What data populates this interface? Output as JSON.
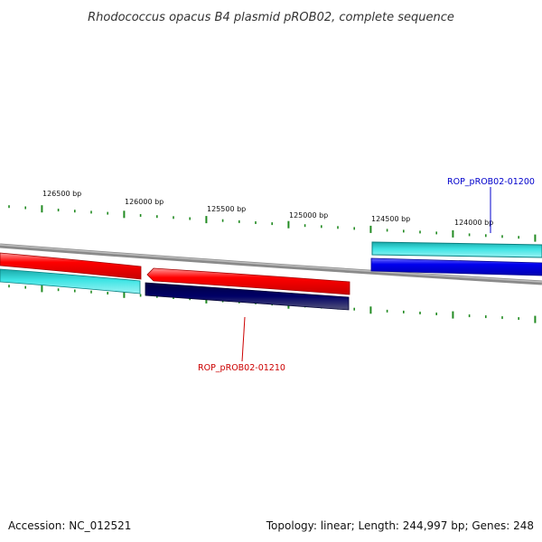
{
  "title": "Rhodococcus opacus B4 plasmid pROB02, complete sequence",
  "footer": {
    "accession": "Accession: NC_012521",
    "summary": "Topology: linear; Length: 244,997 bp; Genes: 248"
  },
  "scale_labels": [
    "126500 bp",
    "126000 bp",
    "125500 bp",
    "125000 bp",
    "124500 bp",
    "124000 bp"
  ],
  "genes": {
    "upper": {
      "label": "ROP_pROB02-01200",
      "color": "#0000cc"
    },
    "lower": {
      "label": "ROP_pROB02-01210",
      "color": "#cc0000"
    }
  },
  "colors": {
    "forward_cds": "#ff0000",
    "reverse_cds": "#0000ee",
    "forward_frame": "#33dddd",
    "dark_frame": "#000066",
    "backbone": "#808080",
    "ticks": "#228b22"
  }
}
